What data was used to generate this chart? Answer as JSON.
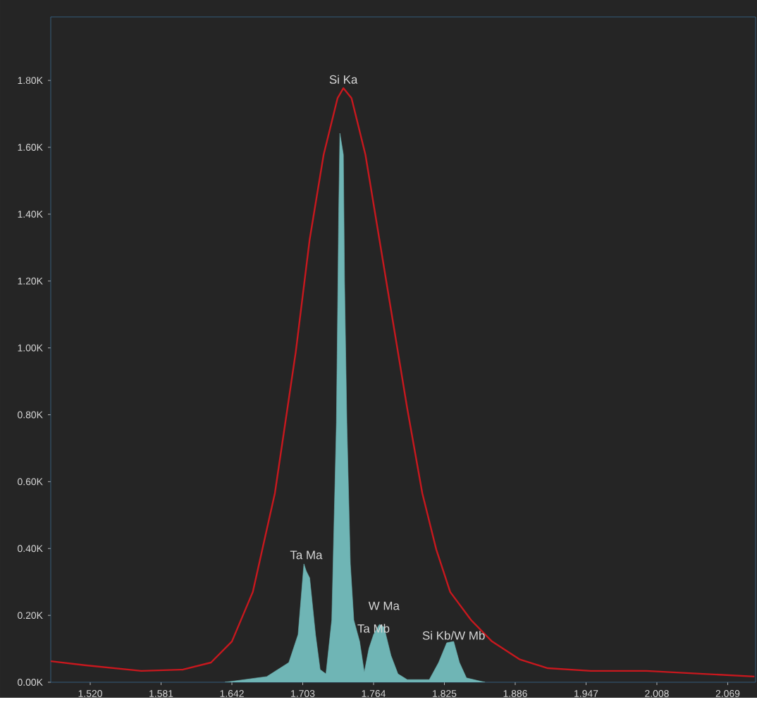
{
  "chart_data": {
    "type": "line",
    "xlim": [
      1.486,
      2.093
    ],
    "ylim": [
      0,
      1990
    ],
    "xticks": [
      {
        "value": 1.52,
        "label": "1.520"
      },
      1.581,
      1.642,
      1.703,
      1.764,
      1.825,
      1.886,
      1.947,
      2.008,
      2.069
    ],
    "yticks": [
      {
        "value": 0,
        "label": "0.00K"
      },
      {
        "value": 200,
        "label": "0.20K"
      },
      {
        "value": 400,
        "label": "0.40K"
      },
      {
        "value": 600,
        "label": "0.60K"
      },
      {
        "value": 800,
        "label": "0.80K"
      },
      {
        "value": 1000,
        "label": "1.00K"
      },
      {
        "value": 1200,
        "label": "1.20K"
      },
      {
        "value": 1400,
        "label": "1.40K"
      },
      {
        "value": 1600,
        "label": "1.60K"
      },
      {
        "value": 1800,
        "label": "1.80K"
      }
    ],
    "series": [
      {
        "type": "area",
        "color": "#6fb5b5",
        "x": [
          1.636,
          1.672,
          1.691,
          1.699,
          1.704,
          1.706,
          1.709,
          1.714,
          1.718,
          1.723,
          1.728,
          1.732,
          1.734,
          1.735,
          1.738,
          1.739,
          1.741,
          1.744,
          1.747,
          1.752,
          1.756,
          1.76,
          1.764,
          1.769,
          1.773,
          1.779,
          1.785,
          1.793,
          1.812,
          1.82,
          1.827,
          1.833,
          1.838,
          1.844,
          1.86
        ],
        "values": [
          0,
          17,
          59,
          143,
          354,
          333,
          312,
          143,
          38,
          25,
          186,
          776,
          1409,
          1642,
          1578,
          1198,
          776,
          354,
          186,
          122,
          30,
          101,
          143,
          173,
          165,
          80,
          25,
          8,
          8,
          59,
          118,
          122,
          59,
          13,
          0
        ]
      },
      {
        "color": "#c8181e",
        "x": [
          1.486,
          1.515,
          1.564,
          1.6,
          1.624,
          1.642,
          1.66,
          1.679,
          1.697,
          1.709,
          1.721,
          1.733,
          1.738,
          1.745,
          1.757,
          1.769,
          1.781,
          1.793,
          1.806,
          1.818,
          1.83,
          1.848,
          1.866,
          1.89,
          1.914,
          1.951,
          1.999,
          2.048,
          2.092
        ],
        "values": [
          63,
          51,
          34,
          38,
          59,
          122,
          270,
          565,
          988,
          1325,
          1578,
          1747,
          1777,
          1747,
          1578,
          1325,
          1072,
          819,
          565,
          397,
          270,
          186,
          122,
          68,
          42,
          34,
          34,
          25,
          17
        ]
      }
    ],
    "annotations": [
      {
        "text": "Si Ka",
        "x": 1.738,
        "y": 1785
      },
      {
        "text": "Ta Ma",
        "x": 1.706,
        "y": 363
      },
      {
        "text": "W Ma",
        "x": 1.773,
        "y": 173
      },
      {
        "text": "Ta Mb",
        "x": 1.764,
        "y": 143
      },
      {
        "text": "Si Kb/W Mb",
        "x": 1.833,
        "y": 122
      }
    ]
  }
}
